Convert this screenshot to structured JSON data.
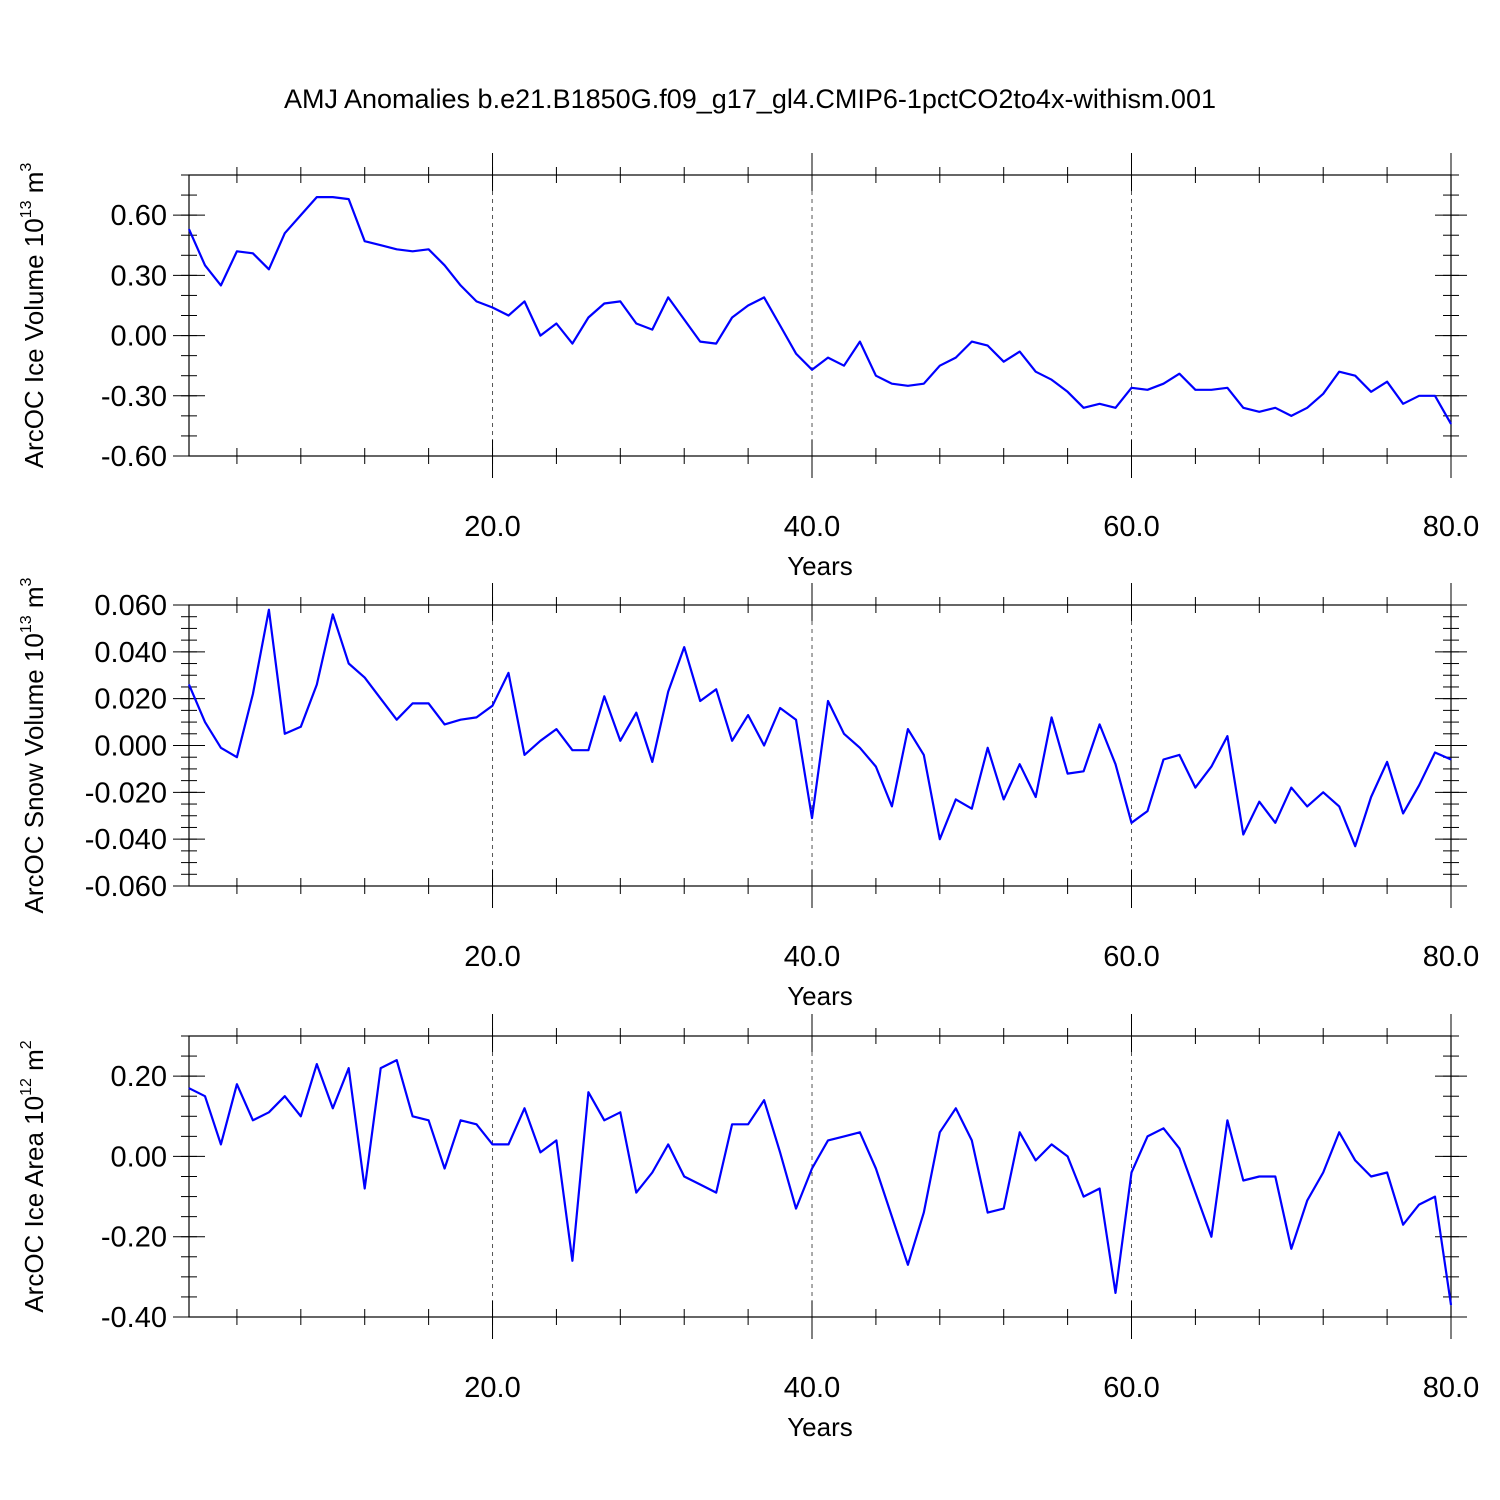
{
  "title": "AMJ Anomalies b.e21.B1850G.f09_g17_gl4.CMIP6-1pctCO2to4x-withism.001",
  "line_color": "#0000ff",
  "chart_data": [
    {
      "type": "line",
      "xlabel": "Years",
      "ylabel": "ArcOC Ice Volume 10",
      "ylabel_exp": "13",
      "ylabel_unit": " m",
      "ylabel_unit_exp": "3",
      "xlim": [
        1,
        80
      ],
      "ylim": [
        -0.6,
        0.8
      ],
      "yticks": [
        -0.6,
        -0.3,
        0.0,
        0.3,
        0.6
      ],
      "ytick_labels": [
        "-0.60",
        "-0.30",
        "0.00",
        "0.30",
        "0.60"
      ],
      "ytick_minor": 0.1,
      "xticks": [
        20,
        40,
        60,
        80
      ],
      "xtick_labels": [
        "20.0",
        "40.0",
        "60.0",
        "80.0"
      ],
      "xtick_minor": 4,
      "grid": "x-dashed",
      "x_start": 1,
      "values": [
        0.53,
        0.35,
        0.25,
        0.42,
        0.41,
        0.33,
        0.51,
        0.6,
        0.69,
        0.69,
        0.68,
        0.47,
        0.45,
        0.43,
        0.42,
        0.43,
        0.35,
        0.25,
        0.17,
        0.14,
        0.1,
        0.17,
        0.0,
        0.06,
        -0.04,
        0.09,
        0.16,
        0.17,
        0.06,
        0.03,
        0.19,
        0.08,
        -0.03,
        -0.04,
        0.09,
        0.15,
        0.19,
        0.05,
        -0.09,
        -0.17,
        -0.11,
        -0.15,
        -0.03,
        -0.2,
        -0.24,
        -0.25,
        -0.24,
        -0.15,
        -0.11,
        -0.03,
        -0.05,
        -0.13,
        -0.08,
        -0.18,
        -0.22,
        -0.28,
        -0.36,
        -0.34,
        -0.36,
        -0.26,
        -0.27,
        -0.24,
        -0.19,
        -0.27,
        -0.27,
        -0.26,
        -0.36,
        -0.38,
        -0.36,
        -0.4,
        -0.36,
        -0.29,
        -0.18,
        -0.2,
        -0.28,
        -0.23,
        -0.34,
        -0.3,
        -0.3,
        -0.44
      ]
    },
    {
      "type": "line",
      "xlabel": "Years",
      "ylabel": "ArcOC Snow Volume 10",
      "ylabel_exp": "13",
      "ylabel_unit": " m",
      "ylabel_unit_exp": "3",
      "xlim": [
        1,
        80
      ],
      "ylim": [
        -0.06,
        0.06
      ],
      "yticks": [
        -0.06,
        -0.04,
        -0.02,
        0.0,
        0.02,
        0.04,
        0.06
      ],
      "ytick_labels": [
        "-0.060",
        "-0.040",
        "-0.020",
        "0.000",
        "0.020",
        "0.040",
        "0.060"
      ],
      "ytick_minor": 0.005,
      "xticks": [
        20,
        40,
        60,
        80
      ],
      "xtick_labels": [
        "20.0",
        "40.0",
        "60.0",
        "80.0"
      ],
      "xtick_minor": 4,
      "grid": "x-dashed",
      "x_start": 1,
      "values": [
        0.026,
        0.01,
        -0.001,
        -0.005,
        0.022,
        0.058,
        0.005,
        0.008,
        0.026,
        0.056,
        0.035,
        0.029,
        0.02,
        0.011,
        0.018,
        0.018,
        0.009,
        0.011,
        0.012,
        0.017,
        0.031,
        -0.004,
        0.002,
        0.007,
        -0.002,
        -0.002,
        0.021,
        0.002,
        0.014,
        -0.007,
        0.023,
        0.042,
        0.019,
        0.024,
        0.002,
        0.013,
        0.0,
        0.016,
        0.011,
        -0.031,
        0.019,
        0.005,
        -0.001,
        -0.009,
        -0.026,
        0.007,
        -0.004,
        -0.04,
        -0.023,
        -0.027,
        -0.001,
        -0.023,
        -0.008,
        -0.022,
        0.012,
        -0.012,
        -0.011,
        0.009,
        -0.008,
        -0.033,
        -0.028,
        -0.006,
        -0.004,
        -0.018,
        -0.009,
        0.004,
        -0.038,
        -0.024,
        -0.033,
        -0.018,
        -0.026,
        -0.02,
        -0.026,
        -0.043,
        -0.022,
        -0.007,
        -0.029,
        -0.017,
        -0.003,
        -0.006
      ]
    },
    {
      "type": "line",
      "xlabel": "Years",
      "ylabel": "ArcOC Ice Area 10",
      "ylabel_exp": "12",
      "ylabel_unit": " m",
      "ylabel_unit_exp": "2",
      "xlim": [
        1,
        80
      ],
      "ylim": [
        -0.4,
        0.3
      ],
      "yticks": [
        -0.4,
        -0.2,
        0.0,
        0.2
      ],
      "ytick_labels": [
        "-0.40",
        "-0.20",
        "0.00",
        "0.20"
      ],
      "ytick_minor": 0.05,
      "xticks": [
        20,
        40,
        60,
        80
      ],
      "xtick_labels": [
        "20.0",
        "40.0",
        "60.0",
        "80.0"
      ],
      "xtick_minor": 4,
      "grid": "x-dashed",
      "x_start": 1,
      "values": [
        0.17,
        0.15,
        0.03,
        0.18,
        0.09,
        0.11,
        0.15,
        0.1,
        0.23,
        0.12,
        0.22,
        -0.08,
        0.22,
        0.24,
        0.1,
        0.09,
        -0.03,
        0.09,
        0.08,
        0.03,
        0.03,
        0.12,
        0.01,
        0.04,
        -0.26,
        0.16,
        0.09,
        0.11,
        -0.09,
        -0.04,
        0.03,
        -0.05,
        -0.07,
        -0.09,
        0.08,
        0.08,
        0.14,
        0.01,
        -0.13,
        -0.03,
        0.04,
        0.05,
        0.06,
        -0.03,
        -0.15,
        -0.27,
        -0.14,
        0.06,
        0.12,
        0.04,
        -0.14,
        -0.13,
        0.06,
        -0.01,
        0.03,
        0.0,
        -0.1,
        -0.08,
        -0.34,
        -0.04,
        0.05,
        0.07,
        0.02,
        -0.09,
        -0.2,
        0.09,
        -0.06,
        -0.05,
        -0.05,
        -0.23,
        -0.11,
        -0.04,
        0.06,
        -0.01,
        -0.05,
        -0.04,
        -0.17,
        -0.12,
        -0.1,
        -0.37
      ]
    }
  ]
}
